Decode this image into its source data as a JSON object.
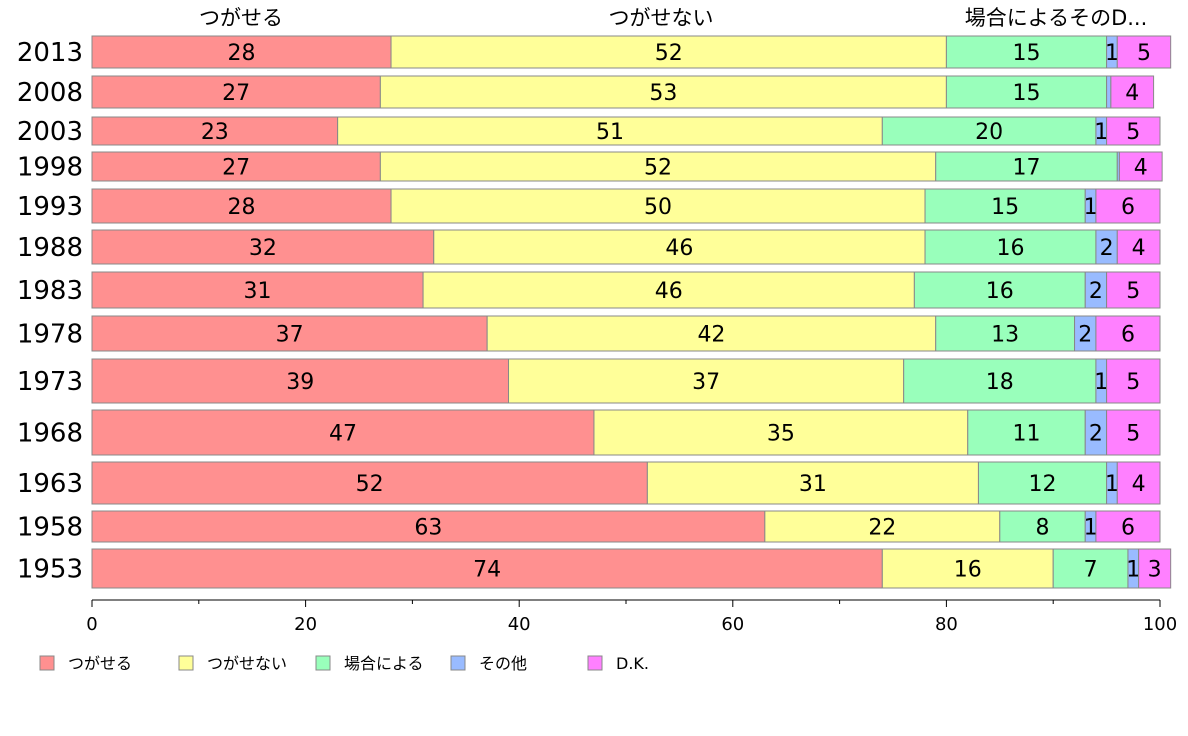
{
  "chart_data": {
    "type": "bar",
    "orientation": "horizontal",
    "stacked": true,
    "categories": [
      "2013",
      "2008",
      "2003",
      "1998",
      "1993",
      "1988",
      "1983",
      "1978",
      "1973",
      "1968",
      "1963",
      "1958",
      "1953"
    ],
    "series": [
      {
        "name": "つがせる",
        "color": "#ff9090",
        "values": [
          28,
          27,
          23,
          27,
          28,
          32,
          31,
          37,
          39,
          47,
          52,
          63,
          74
        ]
      },
      {
        "name": "つがせない",
        "color": "#ffff99",
        "values": [
          52,
          53,
          51,
          52,
          50,
          46,
          46,
          42,
          37,
          35,
          31,
          22,
          16
        ]
      },
      {
        "name": "場合による",
        "color": "#99ffbb",
        "values": [
          15,
          15,
          20,
          17,
          15,
          16,
          16,
          13,
          18,
          11,
          12,
          8,
          7
        ]
      },
      {
        "name": "その他",
        "color": "#99bbff",
        "values": [
          1,
          0.4,
          1,
          0.2,
          1,
          2,
          2,
          2,
          1,
          2,
          1,
          1,
          1
        ]
      },
      {
        "name": "D.K.",
        "color": "#ff80ff",
        "values": [
          5,
          4,
          5,
          4,
          6,
          4,
          5,
          6,
          5,
          5,
          4,
          6,
          3
        ]
      }
    ],
    "data_labels": [
      [
        "28",
        "52",
        "15",
        "1",
        "5"
      ],
      [
        "27",
        "53",
        "15",
        "",
        "4"
      ],
      [
        "23",
        "51",
        "20",
        "1",
        "5"
      ],
      [
        "27",
        "52",
        "17",
        "",
        "4"
      ],
      [
        "28",
        "50",
        "15",
        "1",
        "6"
      ],
      [
        "32",
        "46",
        "16",
        "2",
        "4"
      ],
      [
        "31",
        "46",
        "16",
        "2",
        "5"
      ],
      [
        "37",
        "42",
        "13",
        "2",
        "6"
      ],
      [
        "39",
        "37",
        "18",
        "1",
        "5"
      ],
      [
        "47",
        "35",
        "11",
        "2",
        "5"
      ],
      [
        "52",
        "31",
        "12",
        "1",
        "4"
      ],
      [
        "63",
        "22",
        "8",
        "1",
        "6"
      ],
      [
        "74",
        "16",
        "7",
        "1",
        "3"
      ]
    ],
    "column_headers": [
      "つがせる",
      "つがせない",
      "場合によるそのD..."
    ],
    "xlim": [
      0,
      100
    ],
    "xticks": [
      "0",
      "20",
      "40",
      "60",
      "80",
      "100"
    ],
    "title": "",
    "xlabel": "",
    "ylabel": "",
    "grid": false,
    "legend_position": "bottom-left"
  }
}
